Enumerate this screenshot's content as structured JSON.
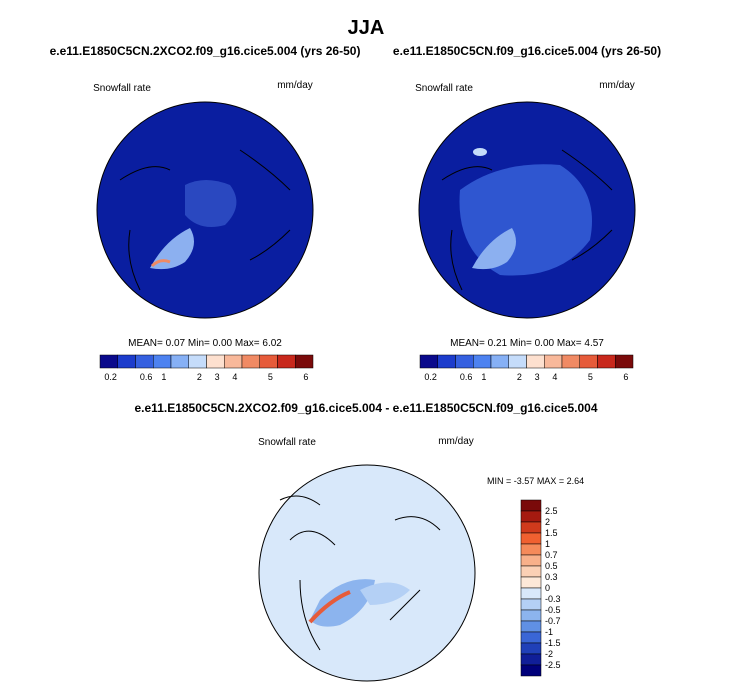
{
  "title": "JJA",
  "panels": [
    {
      "title": "e.e11.E1850C5CN.2XCO2.f09_g16.cice5.004 (yrs 26-50)",
      "variable": "Snowfall rate",
      "units": "mm/day",
      "mean_label": "MEAN=",
      "mean": "0.07",
      "min_label": "Min=",
      "min": "0.00",
      "max_label": "Max=",
      "max": "6.02"
    },
    {
      "title": "e.e11.E1850C5CN.f09_g16.cice5.004 (yrs 26-50)",
      "variable": "Snowfall rate",
      "units": "mm/day",
      "mean_label": "MEAN=",
      "mean": "0.21",
      "min_label": "Min=",
      "min": "0.00",
      "max_label": "Max=",
      "max": "4.57"
    }
  ],
  "colorbar": {
    "labels": [
      0.2,
      0.6,
      1,
      2,
      3,
      4,
      5,
      6
    ],
    "colors": [
      "#0a0a8c",
      "#1c3ccc",
      "#3560e0",
      "#4d82f0",
      "#86b0f5",
      "#c5dcfa",
      "#fde0cf",
      "#f8b89a",
      "#f08a64",
      "#e65b3a",
      "#c8281c",
      "#7a0a0a"
    ]
  },
  "difference": {
    "title": "e.e11.E1850C5CN.2XCO2.f09_g16.cice5.004 - e.e11.E1850C5CN.f09_g16.cice5.004",
    "variable": "Snowfall rate",
    "units": "mm/day",
    "min_label": "MIN =",
    "min": "-3.57",
    "max_label": "MAX =",
    "max": "2.64",
    "colorbar": {
      "labels": [
        2.5,
        2,
        1.5,
        1,
        0.7,
        0.5,
        0.3,
        0,
        -0.3,
        -0.5,
        -0.7,
        -1,
        -1.5,
        -2,
        -2.5
      ],
      "colors": [
        "#7a0a0a",
        "#a51a10",
        "#d03a1c",
        "#f06030",
        "#f58a5a",
        "#f8b08a",
        "#fbd0b5",
        "#fde8d8",
        "#d8e8fa",
        "#b4d0f5",
        "#8cb4ee",
        "#6090e4",
        "#3a66d6",
        "#2040b8",
        "#101e98",
        "#00007a"
      ]
    }
  }
}
